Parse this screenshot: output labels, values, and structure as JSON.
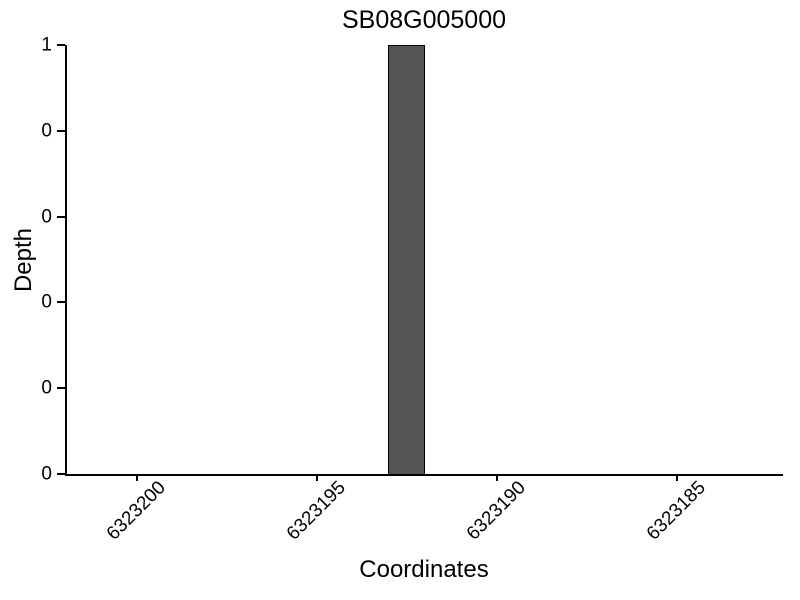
{
  "chart_data": {
    "type": "bar",
    "title": "SB08G005000",
    "xlabel": "Coordinates",
    "ylabel": "Depth",
    "x_axis": {
      "tick_labels": [
        "6323200",
        "6323195",
        "6323190",
        "6323185"
      ],
      "tick_values": [
        6323200,
        6323195,
        6323190,
        6323185
      ],
      "direction": "decreasing-left-to-right",
      "approx_range_left_to_right": [
        6323202,
        6323182
      ],
      "tick_label_rotation_deg": 45
    },
    "y_axis": {
      "tick_labels": [
        "1",
        "0",
        "0",
        "0",
        "0",
        "0"
      ],
      "ylim": [
        0,
        1
      ]
    },
    "series": [
      {
        "name": "depth",
        "bars": [
          {
            "x_center": 6323192.5,
            "x_span": [
              6323193,
              6323192
            ],
            "value": 1
          }
        ]
      }
    ],
    "bar_fill_color": "#555555",
    "bar_edge_color": "#000000",
    "axis_color": "#000000",
    "background_color": "#ffffff",
    "grid": false,
    "legend": false
  }
}
